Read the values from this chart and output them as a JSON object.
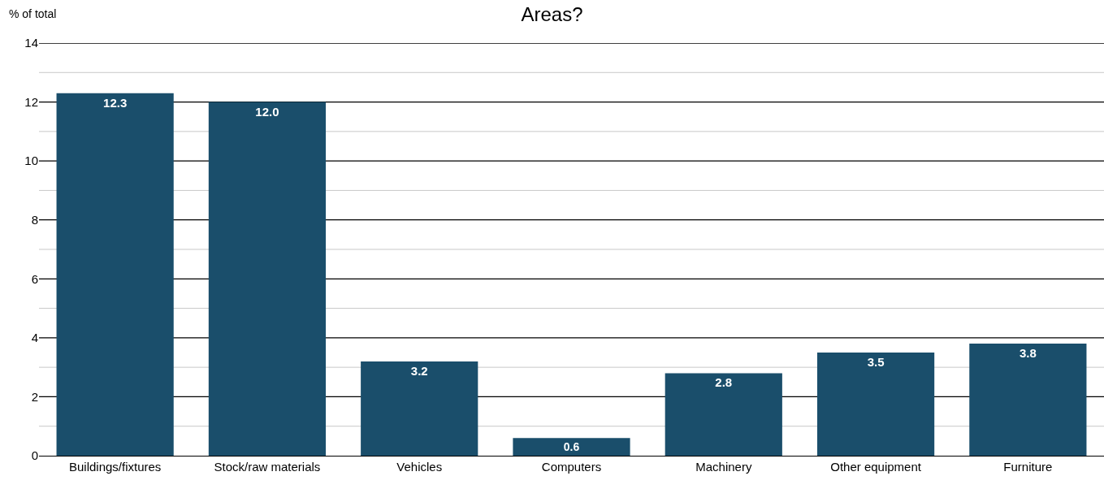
{
  "chart_data": {
    "type": "bar",
    "title": "Areas?",
    "ylabel": "% of total",
    "categories": [
      "Buildings/fixtures",
      "Stock/raw materials",
      "Vehicles",
      "Computers",
      "Machinery",
      "Other equipment",
      "Furniture"
    ],
    "values": [
      12.3,
      12.0,
      3.2,
      0.6,
      2.8,
      3.5,
      3.8
    ],
    "color": "#1a4e6b",
    "value_labels": [
      "12.3",
      "12.0",
      "3.2",
      "0.6",
      "2.8",
      "3.5",
      "3.8"
    ],
    "ylim": [
      0,
      14
    ],
    "yticks": [
      0,
      {
        "value": 1,
        "label": null
      },
      2,
      {
        "value": 3,
        "label": null
      },
      4,
      {
        "value": 5,
        "label": null
      },
      6,
      {
        "value": 7,
        "label": null
      },
      8,
      {
        "value": 9,
        "label": null
      },
      10,
      {
        "value": 11,
        "label": null
      },
      12,
      {
        "value": 13,
        "label": null
      },
      14
    ],
    "grid": "y"
  }
}
